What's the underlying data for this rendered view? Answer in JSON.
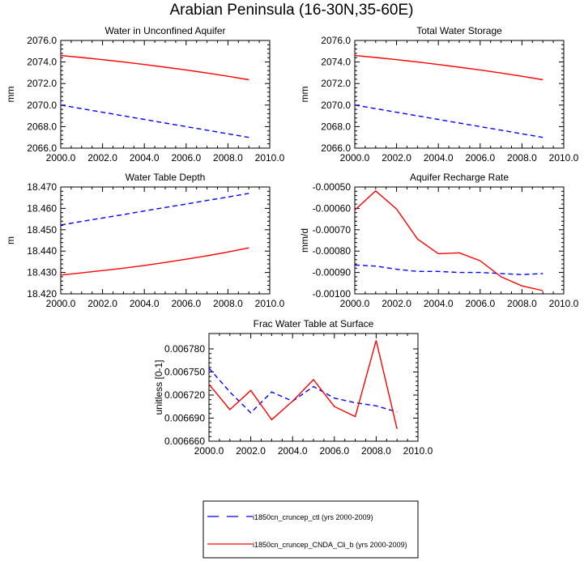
{
  "figure": {
    "title": "Arabian Peninsula (16-30N,35-60E)"
  },
  "colors": {
    "ctl": "#0000ff",
    "exp": "#ff0000",
    "axis": "#000000"
  },
  "legend": {
    "entries": [
      {
        "label": "i1850cn_cruncep_ctl (yrs 2000-2009)",
        "color": "#0000ff",
        "dash": "dashed"
      },
      {
        "label": "i1850cn_cruncep_CNDA_Cli_b (yrs 2000-2009)",
        "color": "#ff0000",
        "dash": "solid"
      }
    ]
  },
  "chart_data": [
    {
      "type": "line",
      "title": "Water in Unconfined Aquifer",
      "xlabel": "",
      "ylabel": "mm",
      "xlim": [
        2000,
        2010
      ],
      "ylim": [
        2066,
        2076
      ],
      "xticks": [
        2000,
        2002,
        2004,
        2006,
        2008,
        2010
      ],
      "xtick_labels": [
        "2000.0",
        "2002.0",
        "2004.0",
        "2006.0",
        "2008.0",
        "2010.0"
      ],
      "yticks": [
        2066,
        2068,
        2070,
        2072,
        2074,
        2076
      ],
      "ytick_labels": [
        "2066.0",
        "2068.0",
        "2070.0",
        "2072.0",
        "2074.0",
        "2076.0"
      ],
      "x": [
        2000,
        2001,
        2002,
        2003,
        2004,
        2005,
        2006,
        2007,
        2008,
        2009
      ],
      "series": [
        {
          "name": "i1850cn_cruncep_ctl (yrs 2000-2009)",
          "values": [
            2070.0,
            2069.67,
            2069.33,
            2069.0,
            2068.67,
            2068.33,
            2068.0,
            2067.67,
            2067.33,
            2067.0
          ]
        },
        {
          "name": "i1850cn_cruncep_CNDA_Cli_b (yrs 2000-2009)",
          "values": [
            2074.6,
            2074.42,
            2074.22,
            2074.0,
            2073.77,
            2073.52,
            2073.26,
            2072.98,
            2072.68,
            2072.35
          ]
        }
      ],
      "x_labels_shown": true
    },
    {
      "type": "line",
      "title": "Total Water Storage",
      "xlabel": "",
      "ylabel": "mm",
      "xlim": [
        2000,
        2010
      ],
      "ylim": [
        2066,
        2076
      ],
      "xticks": [
        2000,
        2002,
        2004,
        2006,
        2008,
        2010
      ],
      "xtick_labels": [
        "2000.0",
        "2002.0",
        "2004.0",
        "2006.0",
        "2008.0",
        "2010.0"
      ],
      "yticks": [
        2066,
        2068,
        2070,
        2072,
        2074,
        2076
      ],
      "ytick_labels": [
        "2066.0",
        "2068.0",
        "2070.0",
        "2072.0",
        "2074.0",
        "2076.0"
      ],
      "x": [
        2000,
        2001,
        2002,
        2003,
        2004,
        2005,
        2006,
        2007,
        2008,
        2009
      ],
      "series": [
        {
          "name": "i1850cn_cruncep_ctl (yrs 2000-2009)",
          "values": [
            2070.0,
            2069.67,
            2069.33,
            2069.0,
            2068.67,
            2068.33,
            2068.0,
            2067.67,
            2067.33,
            2067.0
          ]
        },
        {
          "name": "i1850cn_cruncep_CNDA_Cli_b (yrs 2000-2009)",
          "values": [
            2074.6,
            2074.42,
            2074.22,
            2074.0,
            2073.77,
            2073.52,
            2073.26,
            2072.98,
            2072.68,
            2072.35
          ]
        }
      ],
      "x_labels_shown": true
    },
    {
      "type": "line",
      "title": "Water Table Depth",
      "xlabel": "",
      "ylabel": "m",
      "xlim": [
        2000,
        2010
      ],
      "ylim": [
        18.42,
        18.47
      ],
      "xticks": [
        2000,
        2002,
        2004,
        2006,
        2008,
        2010
      ],
      "xtick_labels": [
        "2000.0",
        "2002.0",
        "2004.0",
        "2006.0",
        "2008.0",
        "2010.0"
      ],
      "yticks": [
        18.42,
        18.43,
        18.44,
        18.45,
        18.46,
        18.47
      ],
      "ytick_labels": [
        "18.420",
        "18.430",
        "18.440",
        "18.450",
        "18.460",
        "18.470"
      ],
      "x": [
        2000,
        2001,
        2002,
        2003,
        2004,
        2005,
        2006,
        2007,
        2008,
        2009
      ],
      "series": [
        {
          "name": "i1850cn_cruncep_ctl (yrs 2000-2009)",
          "values": [
            18.4522,
            18.4539,
            18.4555,
            18.4571,
            18.4588,
            18.4604,
            18.462,
            18.4637,
            18.4653,
            18.467
          ]
        },
        {
          "name": "i1850cn_cruncep_CNDA_Cli_b (yrs 2000-2009)",
          "values": [
            18.4288,
            18.4298,
            18.4309,
            18.432,
            18.4333,
            18.4347,
            18.4362,
            18.4378,
            18.4396,
            18.4415
          ]
        }
      ],
      "x_labels_shown": true
    },
    {
      "type": "line",
      "title": "Aquifer Recharge Rate",
      "xlabel": "",
      "ylabel": "mm/d",
      "xlim": [
        2000,
        2010
      ],
      "ylim": [
        -0.001,
        -0.0005
      ],
      "xticks": [
        2000,
        2002,
        2004,
        2006,
        2008,
        2010
      ],
      "xtick_labels": [
        "2000.0",
        "2002.0",
        "2004.0",
        "2006.0",
        "2008.0",
        "2010.0"
      ],
      "yticks": [
        -0.001,
        -0.0009,
        -0.0008,
        -0.0007,
        -0.0006,
        -0.0005
      ],
      "ytick_labels": [
        "-0.00100",
        "-0.00090",
        "-0.00080",
        "-0.00070",
        "-0.00060",
        "-0.00050"
      ],
      "x": [
        2000,
        2001,
        2002,
        2003,
        2004,
        2005,
        2006,
        2007,
        2008,
        2009
      ],
      "series": [
        {
          "name": "i1850cn_cruncep_ctl (yrs 2000-2009)",
          "values": [
            -0.000865,
            -0.00087,
            -0.000885,
            -0.000895,
            -0.000895,
            -0.0009,
            -0.0009,
            -0.000905,
            -0.00091,
            -0.000905
          ]
        },
        {
          "name": "i1850cn_cruncep_CNDA_Cli_b (yrs 2000-2009)",
          "values": [
            -0.000608,
            -0.000518,
            -0.000603,
            -0.000743,
            -0.000812,
            -0.000808,
            -0.000845,
            -0.00092,
            -0.000963,
            -0.000985
          ]
        }
      ],
      "x_labels_shown": true
    },
    {
      "type": "line",
      "title": "Frac Water Table at Surface",
      "xlabel": "",
      "ylabel": "unitless [0-1]",
      "xlim": [
        2000,
        2010
      ],
      "ylim": [
        0.00666,
        0.0068
      ],
      "xticks": [
        2000,
        2002,
        2004,
        2006,
        2008,
        2010
      ],
      "xtick_labels": [
        "2000.0",
        "2002.0",
        "2004.0",
        "2006.0",
        "2008.0",
        "2010.0"
      ],
      "yticks": [
        0.00666,
        0.00669,
        0.00672,
        0.00675,
        0.00678
      ],
      "ytick_labels": [
        "0.006660",
        "0.006690",
        "0.006720",
        "0.006750",
        "0.006780"
      ],
      "x": [
        2000,
        2001,
        2002,
        2003,
        2004,
        2005,
        2006,
        2007,
        2008,
        2009
      ],
      "series": [
        {
          "name": "i1850cn_cruncep_ctl (yrs 2000-2009)",
          "values": [
            0.006755,
            0.006724,
            0.006697,
            0.006724,
            0.006712,
            0.006731,
            0.006716,
            0.00671,
            0.006706,
            0.006698
          ]
        },
        {
          "name": "i1850cn_cruncep_CNDA_Cli_b (yrs 2000-2009)",
          "values": [
            0.006734,
            0.006701,
            0.006726,
            0.006688,
            0.006712,
            0.00674,
            0.006705,
            0.006692,
            0.006791,
            0.006676
          ]
        }
      ],
      "x_labels_shown": true
    }
  ]
}
